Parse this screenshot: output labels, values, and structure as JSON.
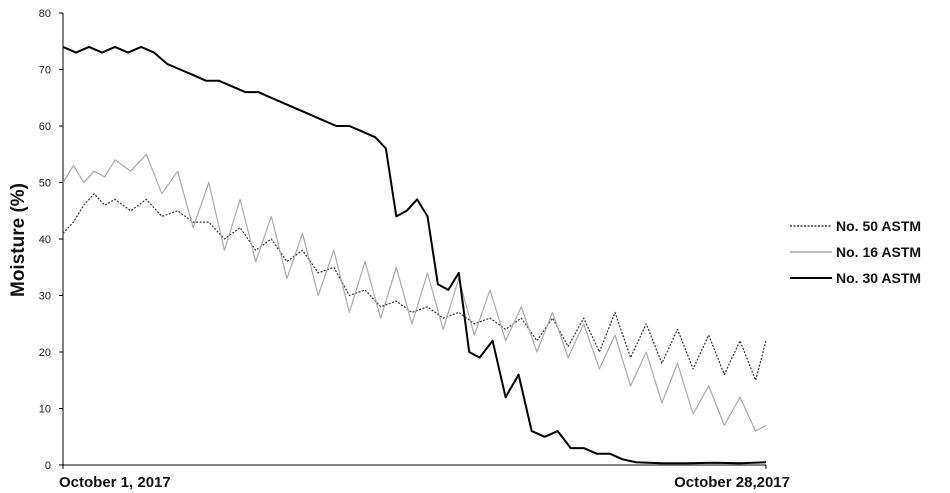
{
  "chart_data": {
    "type": "line",
    "title": "",
    "xlabel": "",
    "ylabel": "Moisture (%)",
    "ylim": [
      0,
      80
    ],
    "yticks": [
      0,
      10,
      20,
      30,
      40,
      50,
      60,
      70,
      80
    ],
    "xlim": [
      0,
      27
    ],
    "x_tick_labels": [
      {
        "x": 0,
        "label": "October 1, 2017"
      },
      {
        "x": 27,
        "label": "October 28,2017"
      }
    ],
    "grid": false,
    "legend": "right",
    "x_units": "days from October 1, 2017",
    "series": [
      {
        "name": "No. 50 ASTM",
        "color": "#333333",
        "style": "dotted",
        "x": [
          0,
          0.4,
          0.8,
          1.2,
          1.6,
          2.0,
          2.6,
          3.2,
          3.8,
          4.4,
          5.0,
          5.6,
          6.2,
          6.8,
          7.4,
          8.0,
          8.6,
          9.2,
          9.8,
          10.4,
          11.0,
          11.6,
          12.2,
          12.8,
          13.4,
          14.0,
          14.6,
          15.2,
          15.8,
          16.4,
          17.0,
          17.6,
          18.2,
          18.8,
          19.4,
          20.0,
          20.6,
          21.2,
          21.8,
          22.4,
          23.0,
          23.6,
          24.2,
          24.8,
          25.4,
          26.0,
          26.6,
          27.0
        ],
        "values": [
          41,
          43,
          46,
          48,
          46,
          47,
          45,
          47,
          44,
          45,
          43,
          43,
          40,
          42,
          38,
          40,
          36,
          38,
          34,
          35,
          30,
          31,
          28,
          29,
          27,
          28,
          26,
          27,
          25,
          26,
          24,
          26,
          22,
          26,
          21,
          26,
          20,
          27,
          19,
          25,
          18,
          24,
          17,
          23,
          16,
          22,
          15,
          22
        ]
      },
      {
        "name": "No. 16 ASTM",
        "color": "#aaaaaa",
        "style": "solid",
        "x": [
          0,
          0.4,
          0.8,
          1.2,
          1.6,
          2.0,
          2.6,
          3.2,
          3.8,
          4.4,
          5.0,
          5.6,
          6.2,
          6.8,
          7.4,
          8.0,
          8.6,
          9.2,
          9.8,
          10.4,
          11.0,
          11.6,
          12.2,
          12.8,
          13.4,
          14.0,
          14.6,
          15.2,
          15.8,
          16.4,
          17.0,
          17.6,
          18.2,
          18.8,
          19.4,
          20.0,
          20.6,
          21.2,
          21.8,
          22.4,
          23.0,
          23.6,
          24.2,
          24.8,
          25.4,
          26.0,
          26.6,
          27.0
        ],
        "values": [
          50,
          53,
          50,
          52,
          51,
          54,
          52,
          55,
          48,
          52,
          42,
          50,
          38,
          47,
          36,
          44,
          33,
          41,
          30,
          38,
          27,
          36,
          26,
          35,
          25,
          34,
          24,
          33,
          23,
          31,
          22,
          28,
          20,
          27,
          19,
          25,
          17,
          23,
          14,
          20,
          11,
          18,
          9,
          14,
          7,
          12,
          6,
          7
        ]
      },
      {
        "name": "No. 30 ASTM",
        "color": "#000000",
        "style": "solid",
        "x": [
          0,
          0.5,
          1.0,
          1.5,
          2.0,
          2.5,
          3.0,
          3.5,
          4.0,
          4.5,
          5.0,
          5.5,
          6.0,
          6.5,
          7.0,
          7.5,
          8.0,
          8.5,
          9.0,
          9.5,
          10.0,
          10.5,
          11.0,
          11.5,
          12.0,
          12.4,
          12.8,
          13.2,
          13.6,
          14.0,
          14.4,
          14.8,
          15.2,
          15.6,
          16.0,
          16.5,
          17.0,
          17.5,
          18.0,
          18.5,
          19.0,
          19.5,
          20.0,
          20.5,
          21.0,
          21.5,
          22.0,
          23.0,
          24.0,
          25.0,
          26.0,
          27.0
        ],
        "values": [
          74,
          73,
          74,
          73,
          74,
          73,
          74,
          73,
          71,
          70,
          69,
          68,
          68,
          67,
          66,
          66,
          65,
          64,
          63,
          62,
          61,
          60,
          60,
          59,
          58,
          56,
          44,
          45,
          47,
          44,
          32,
          31,
          34,
          20,
          19,
          22,
          12,
          16,
          6,
          5,
          6,
          3,
          3,
          2,
          2,
          1,
          0.5,
          0.3,
          0.3,
          0.4,
          0.3,
          0.5
        ]
      }
    ]
  }
}
